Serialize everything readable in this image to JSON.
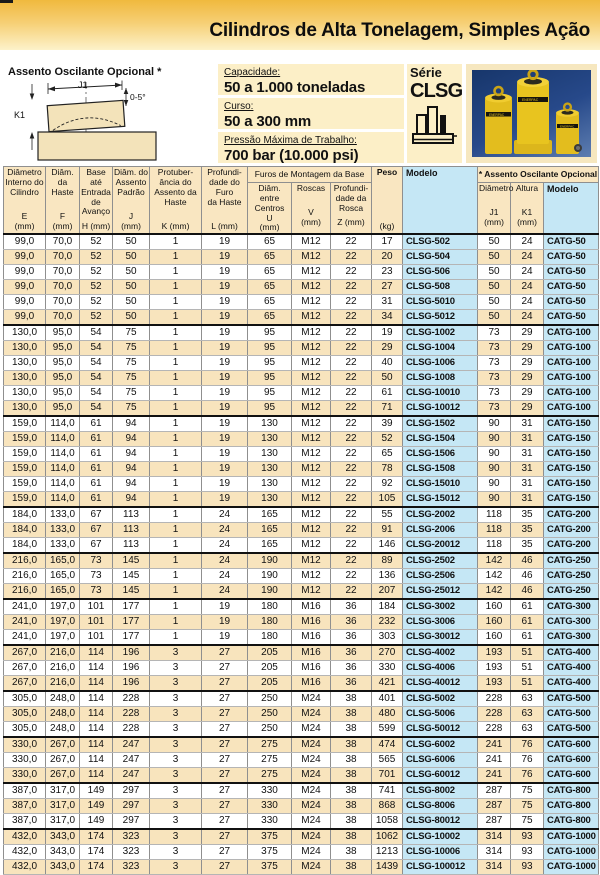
{
  "page_title": "Cilindros de Alta Tonelagem, Simples Ação",
  "saddle_section": {
    "title": "Assento Oscilante Opcional *",
    "dim_j1": "J1",
    "dim_k1": "K1",
    "dim_angle": "0-5°"
  },
  "specs": [
    {
      "label": "Capacidade:",
      "value": "50 a 1.000 toneladas"
    },
    {
      "label": "Curso:",
      "value": "50 a 300 mm"
    },
    {
      "label": "Pressão Máxima de Trabalho:",
      "value": "700 bar (10.000 psi)"
    }
  ],
  "series": {
    "prefix": "Série",
    "name": "CLSG",
    "photo_brand": "ENERPAC"
  },
  "colors": {
    "accent_gold": "#f0b93e",
    "panel_cream": "#fcefc7",
    "table_header_bg": "#f9e6c1",
    "row_alt_bg": "#f8e4bd",
    "model_col_bg": "#c5e7f5",
    "photo_bg": "#17366b",
    "cylinder_yellow": "#e8c41f"
  },
  "table": {
    "headers": {
      "e": {
        "name": "Diâmetro\nInterno do\nCilindro",
        "sym": "E\n(mm)"
      },
      "f": {
        "name": "Diâm. da\nHaste",
        "sym": "F\n(mm)"
      },
      "h": {
        "name": "Base até\nEntrada\nde\nAvanço",
        "sym": "H (mm)"
      },
      "j": {
        "name": "Diâm. do\nAssento\nPadrão",
        "sym": "J\n(mm)"
      },
      "k": {
        "name": "Protuber-\nância do\nAssento da\nHaste",
        "sym": "K (mm)"
      },
      "l": {
        "name": "Profundi-\ndade do\nFuro\nda Haste",
        "sym": "L (mm)"
      },
      "group_furos": "Furos de Montagem da Base",
      "u": {
        "name": "Diâm. entre\nCentros",
        "sym": "U\n(mm)"
      },
      "v": {
        "name": "Roscas",
        "sym": "V\n(mm)"
      },
      "z": {
        "name": "Profundi-\ndade da\nRosca",
        "sym": "Z (mm)"
      },
      "peso": {
        "name": "Peso",
        "sym": "(kg)"
      },
      "modelo": {
        "name": "Modelo"
      },
      "group_assento": "* Assento Oscilante Opcional",
      "j1": {
        "name": "Diâmetro",
        "sym": "J1\n(mm)"
      },
      "k1": {
        "name": "Altura",
        "sym": "K1\n(mm)"
      },
      "modelo2": {
        "name": "Modelo"
      }
    },
    "rows": [
      [
        "99,0",
        "70,0",
        "52",
        "50",
        "1",
        "19",
        "65",
        "M12",
        "22",
        "17",
        "CLSG-502",
        "50",
        "24",
        "CATG-50"
      ],
      [
        "99,0",
        "70,0",
        "52",
        "50",
        "1",
        "19",
        "65",
        "M12",
        "22",
        "20",
        "CLSG-504",
        "50",
        "24",
        "CATG-50"
      ],
      [
        "99,0",
        "70,0",
        "52",
        "50",
        "1",
        "19",
        "65",
        "M12",
        "22",
        "23",
        "CLSG-506",
        "50",
        "24",
        "CATG-50"
      ],
      [
        "99,0",
        "70,0",
        "52",
        "50",
        "1",
        "19",
        "65",
        "M12",
        "22",
        "27",
        "CLSG-508",
        "50",
        "24",
        "CATG-50"
      ],
      [
        "99,0",
        "70,0",
        "52",
        "50",
        "1",
        "19",
        "65",
        "M12",
        "22",
        "31",
        "CLSG-5010",
        "50",
        "24",
        "CATG-50"
      ],
      [
        "99,0",
        "70,0",
        "52",
        "50",
        "1",
        "19",
        "65",
        "M12",
        "22",
        "34",
        "CLSG-5012",
        "50",
        "24",
        "CATG-50"
      ],
      [
        "130,0",
        "95,0",
        "54",
        "75",
        "1",
        "19",
        "95",
        "M12",
        "22",
        "19",
        "CLSG-1002",
        "73",
        "29",
        "CATG-100"
      ],
      [
        "130,0",
        "95,0",
        "54",
        "75",
        "1",
        "19",
        "95",
        "M12",
        "22",
        "29",
        "CLSG-1004",
        "73",
        "29",
        "CATG-100"
      ],
      [
        "130,0",
        "95,0",
        "54",
        "75",
        "1",
        "19",
        "95",
        "M12",
        "22",
        "40",
        "CLSG-1006",
        "73",
        "29",
        "CATG-100"
      ],
      [
        "130,0",
        "95,0",
        "54",
        "75",
        "1",
        "19",
        "95",
        "M12",
        "22",
        "50",
        "CLSG-1008",
        "73",
        "29",
        "CATG-100"
      ],
      [
        "130,0",
        "95,0",
        "54",
        "75",
        "1",
        "19",
        "95",
        "M12",
        "22",
        "61",
        "CLSG-10010",
        "73",
        "29",
        "CATG-100"
      ],
      [
        "130,0",
        "95,0",
        "54",
        "75",
        "1",
        "19",
        "95",
        "M12",
        "22",
        "71",
        "CLSG-10012",
        "73",
        "29",
        "CATG-100"
      ],
      [
        "159,0",
        "114,0",
        "61",
        "94",
        "1",
        "19",
        "130",
        "M12",
        "22",
        "39",
        "CLSG-1502",
        "90",
        "31",
        "CATG-150"
      ],
      [
        "159,0",
        "114,0",
        "61",
        "94",
        "1",
        "19",
        "130",
        "M12",
        "22",
        "52",
        "CLSG-1504",
        "90",
        "31",
        "CATG-150"
      ],
      [
        "159,0",
        "114,0",
        "61",
        "94",
        "1",
        "19",
        "130",
        "M12",
        "22",
        "65",
        "CLSG-1506",
        "90",
        "31",
        "CATG-150"
      ],
      [
        "159,0",
        "114,0",
        "61",
        "94",
        "1",
        "19",
        "130",
        "M12",
        "22",
        "78",
        "CLSG-1508",
        "90",
        "31",
        "CATG-150"
      ],
      [
        "159,0",
        "114,0",
        "61",
        "94",
        "1",
        "19",
        "130",
        "M12",
        "22",
        "92",
        "CLSG-15010",
        "90",
        "31",
        "CATG-150"
      ],
      [
        "159,0",
        "114,0",
        "61",
        "94",
        "1",
        "19",
        "130",
        "M12",
        "22",
        "105",
        "CLSG-15012",
        "90",
        "31",
        "CATG-150"
      ],
      [
        "184,0",
        "133,0",
        "67",
        "113",
        "1",
        "24",
        "165",
        "M12",
        "22",
        "55",
        "CLSG-2002",
        "118",
        "35",
        "CATG-200"
      ],
      [
        "184,0",
        "133,0",
        "67",
        "113",
        "1",
        "24",
        "165",
        "M12",
        "22",
        "91",
        "CLSG-2006",
        "118",
        "35",
        "CATG-200"
      ],
      [
        "184,0",
        "133,0",
        "67",
        "113",
        "1",
        "24",
        "165",
        "M12",
        "22",
        "146",
        "CLSG-20012",
        "118",
        "35",
        "CATG-200"
      ],
      [
        "216,0",
        "165,0",
        "73",
        "145",
        "1",
        "24",
        "190",
        "M12",
        "22",
        "89",
        "CLSG-2502",
        "142",
        "46",
        "CATG-250"
      ],
      [
        "216,0",
        "165,0",
        "73",
        "145",
        "1",
        "24",
        "190",
        "M12",
        "22",
        "136",
        "CLSG-2506",
        "142",
        "46",
        "CATG-250"
      ],
      [
        "216,0",
        "165,0",
        "73",
        "145",
        "1",
        "24",
        "190",
        "M12",
        "22",
        "207",
        "CLSG-25012",
        "142",
        "46",
        "CATG-250"
      ],
      [
        "241,0",
        "197,0",
        "101",
        "177",
        "1",
        "19",
        "180",
        "M16",
        "36",
        "184",
        "CLSG-3002",
        "160",
        "61",
        "CATG-300"
      ],
      [
        "241,0",
        "197,0",
        "101",
        "177",
        "1",
        "19",
        "180",
        "M16",
        "36",
        "232",
        "CLSG-3006",
        "160",
        "61",
        "CATG-300"
      ],
      [
        "241,0",
        "197,0",
        "101",
        "177",
        "1",
        "19",
        "180",
        "M16",
        "36",
        "303",
        "CLSG-30012",
        "160",
        "61",
        "CATG-300"
      ],
      [
        "267,0",
        "216,0",
        "114",
        "196",
        "3",
        "27",
        "205",
        "M16",
        "36",
        "270",
        "CLSG-4002",
        "193",
        "51",
        "CATG-400"
      ],
      [
        "267,0",
        "216,0",
        "114",
        "196",
        "3",
        "27",
        "205",
        "M16",
        "36",
        "330",
        "CLSG-4006",
        "193",
        "51",
        "CATG-400"
      ],
      [
        "267,0",
        "216,0",
        "114",
        "196",
        "3",
        "27",
        "205",
        "M16",
        "36",
        "421",
        "CLSG-40012",
        "193",
        "51",
        "CATG-400"
      ],
      [
        "305,0",
        "248,0",
        "114",
        "228",
        "3",
        "27",
        "250",
        "M24",
        "38",
        "401",
        "CLSG-5002",
        "228",
        "63",
        "CATG-500"
      ],
      [
        "305,0",
        "248,0",
        "114",
        "228",
        "3",
        "27",
        "250",
        "M24",
        "38",
        "480",
        "CLSG-5006",
        "228",
        "63",
        "CATG-500"
      ],
      [
        "305,0",
        "248,0",
        "114",
        "228",
        "3",
        "27",
        "250",
        "M24",
        "38",
        "599",
        "CLSG-50012",
        "228",
        "63",
        "CATG-500"
      ],
      [
        "330,0",
        "267,0",
        "114",
        "247",
        "3",
        "27",
        "275",
        "M24",
        "38",
        "474",
        "CLSG-6002",
        "241",
        "76",
        "CATG-600"
      ],
      [
        "330,0",
        "267,0",
        "114",
        "247",
        "3",
        "27",
        "275",
        "M24",
        "38",
        "565",
        "CLSG-6006",
        "241",
        "76",
        "CATG-600"
      ],
      [
        "330,0",
        "267,0",
        "114",
        "247",
        "3",
        "27",
        "275",
        "M24",
        "38",
        "701",
        "CLSG-60012",
        "241",
        "76",
        "CATG-600"
      ],
      [
        "387,0",
        "317,0",
        "149",
        "297",
        "3",
        "27",
        "330",
        "M24",
        "38",
        "741",
        "CLSG-8002",
        "287",
        "75",
        "CATG-800"
      ],
      [
        "387,0",
        "317,0",
        "149",
        "297",
        "3",
        "27",
        "330",
        "M24",
        "38",
        "868",
        "CLSG-8006",
        "287",
        "75",
        "CATG-800"
      ],
      [
        "387,0",
        "317,0",
        "149",
        "297",
        "3",
        "27",
        "330",
        "M24",
        "38",
        "1058",
        "CLSG-80012",
        "287",
        "75",
        "CATG-800"
      ],
      [
        "432,0",
        "343,0",
        "174",
        "323",
        "3",
        "27",
        "375",
        "M24",
        "38",
        "1062",
        "CLSG-10002",
        "314",
        "93",
        "CATG-1000"
      ],
      [
        "432,0",
        "343,0",
        "174",
        "323",
        "3",
        "27",
        "375",
        "M24",
        "38",
        "1213",
        "CLSG-10006",
        "314",
        "93",
        "CATG-1000"
      ],
      [
        "432,0",
        "343,0",
        "174",
        "323",
        "3",
        "27",
        "375",
        "M24",
        "38",
        "1439",
        "CLSG-100012",
        "314",
        "93",
        "CATG-1000"
      ]
    ]
  }
}
